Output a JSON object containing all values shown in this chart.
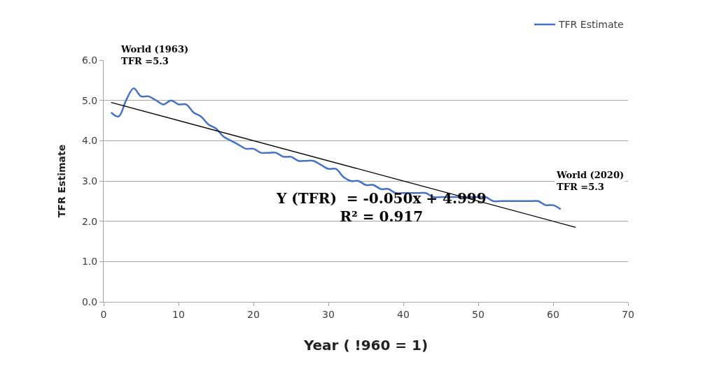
{
  "chart_data": {
    "type": "line",
    "xlabel": "Year ( !960 = 1)",
    "ylabel": "TFR Estimate",
    "x": [
      1,
      2,
      3,
      4,
      5,
      6,
      7,
      8,
      9,
      10,
      11,
      12,
      13,
      14,
      15,
      16,
      17,
      18,
      19,
      20,
      21,
      22,
      23,
      24,
      25,
      26,
      27,
      28,
      29,
      30,
      31,
      32,
      33,
      34,
      35,
      36,
      37,
      38,
      39,
      40,
      41,
      42,
      43,
      44,
      45,
      46,
      47,
      48,
      49,
      50,
      51,
      52,
      53,
      54,
      55,
      56,
      57,
      58,
      59,
      60,
      61
    ],
    "series": [
      {
        "name": "TFR Estimate",
        "color": "#4472c4",
        "values": [
          4.7,
          4.6,
          5.0,
          5.3,
          5.1,
          5.1,
          5.0,
          4.9,
          5.0,
          4.9,
          4.9,
          4.7,
          4.6,
          4.4,
          4.3,
          4.1,
          4.0,
          3.9,
          3.8,
          3.8,
          3.7,
          3.7,
          3.7,
          3.6,
          3.6,
          3.5,
          3.5,
          3.5,
          3.4,
          3.3,
          3.3,
          3.1,
          3.0,
          3.0,
          2.9,
          2.9,
          2.8,
          2.8,
          2.7,
          2.7,
          2.7,
          2.7,
          2.7,
          2.6,
          2.6,
          2.6,
          2.6,
          2.6,
          2.6,
          2.6,
          2.6,
          2.5,
          2.5,
          2.5,
          2.5,
          2.5,
          2.5,
          2.5,
          2.4,
          2.4,
          2.3
        ]
      },
      {
        "type": "line",
        "color": "#000000",
        "x": [
          1,
          63
        ],
        "values": [
          4.95,
          1.85
        ]
      }
    ],
    "annotations": [
      "World (1963)\nTFR =5.3",
      "World (2020)\nTFR =5.3",
      "Y (TFR)  = -0.050x + 4.999\nR² = 0.917"
    ],
    "xlim": [
      0,
      70
    ],
    "xticks": [
      0,
      10,
      20,
      30,
      40,
      50,
      60,
      70
    ],
    "ylim": [
      0,
      6
    ],
    "yticks": [
      {
        "value": 0,
        "label": "0.0"
      },
      {
        "value": 1,
        "label": "1.0"
      },
      {
        "value": 2,
        "label": "2.0"
      },
      {
        "value": 3,
        "label": "3.0"
      },
      {
        "value": 4,
        "label": "4.0"
      },
      {
        "value": 5,
        "label": "5.0"
      },
      {
        "value": 6,
        "label": "6.0"
      }
    ],
    "grid": "y",
    "legend": "top right",
    "marker": "none",
    "line_style": "solid"
  }
}
